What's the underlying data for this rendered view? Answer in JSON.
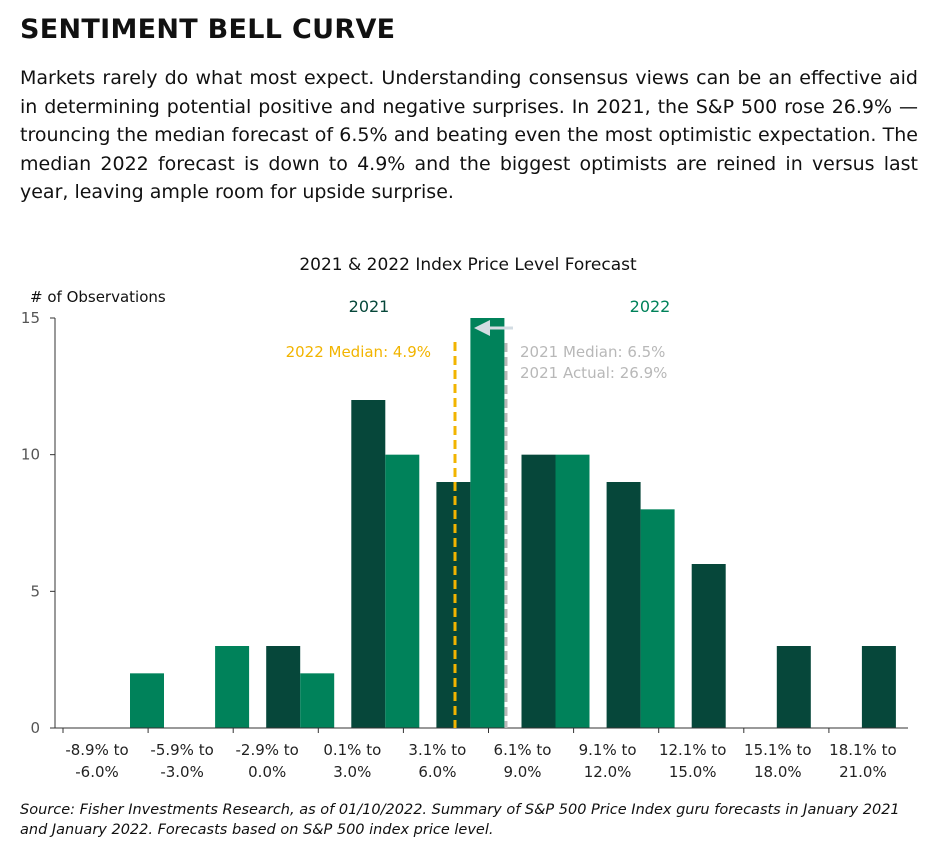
{
  "page": {
    "title": "SENTIMENT BELL CURVE",
    "intro": "Markets rarely do what most expect. Understanding consensus views can be an effective aid in determining potential positive and negative surprises. In 2021, the S&P 500 rose 26.9% — trouncing the median forecast of 6.5% and beating even the most optimistic expectation. The median 2022 forecast is down to 4.9% and the biggest optimists are reined in versus last year, leaving ample room for upside surprise.",
    "source": "Source: Fisher Investments Research, as of 01/10/2022. Summary of S&P 500 Price Index guru forecasts in January 2021 and January 2022. Forecasts based on S&P 500 index price level."
  },
  "chart_data": {
    "type": "bar",
    "title": "2021 & 2022 Index Price Level Forecast",
    "ylabel": "# of Observations",
    "xlabel": "",
    "ylim": [
      0,
      15
    ],
    "yticks": [
      0,
      5,
      10,
      15
    ],
    "grid": false,
    "categories": [
      [
        "-8.9% to",
        "-6.0%"
      ],
      [
        "-5.9% to",
        "-3.0%"
      ],
      [
        "-2.9% to",
        "0.0%"
      ],
      [
        "0.1% to",
        "3.0%"
      ],
      [
        "3.1% to",
        "6.0%"
      ],
      [
        "6.1% to",
        "9.0%"
      ],
      [
        "9.1% to",
        "12.0%"
      ],
      [
        "12.1% to",
        "15.0%"
      ],
      [
        "15.1% to",
        "18.0%"
      ],
      [
        "18.1% to",
        "21.0%"
      ]
    ],
    "series": [
      {
        "name": "2021",
        "color": "#06473a",
        "values": [
          0,
          0,
          3,
          12,
          9,
          10,
          9,
          6,
          3,
          3
        ]
      },
      {
        "name": "2022",
        "color": "#00825a",
        "values": [
          2,
          3,
          2,
          10,
          15,
          10,
          8,
          0,
          0,
          0
        ]
      }
    ],
    "annotations": {
      "median_2022": {
        "label": "2022 Median: 4.9%",
        "value": 4.9,
        "color": "#f2b400"
      },
      "median_2021": {
        "label": "2021 Median: 6.5%",
        "value": 6.5,
        "color": "#b8b8b8"
      },
      "actual_2021": {
        "label": "2021 Actual: 26.9%",
        "value": 26.9,
        "color": "#b8b8b8"
      },
      "arrow_color": "#d3dce3"
    }
  }
}
